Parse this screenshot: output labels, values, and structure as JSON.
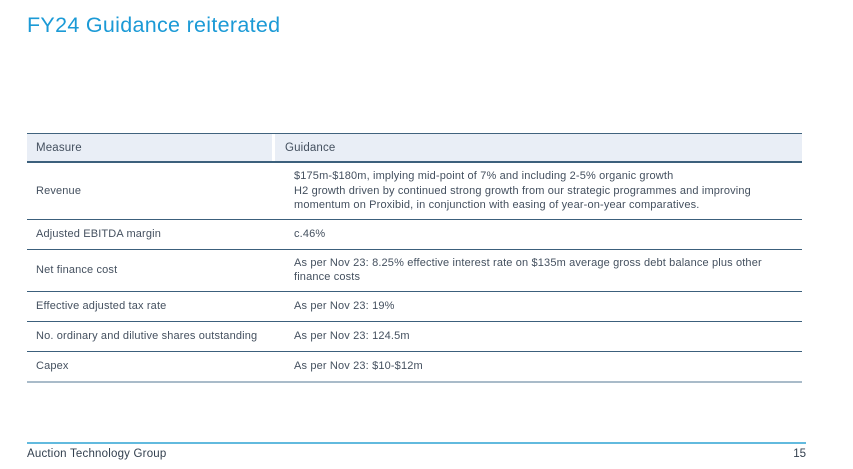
{
  "slide": {
    "title": "FY24 Guidance reiterated"
  },
  "table": {
    "columns": [
      "Measure",
      "Guidance"
    ],
    "rows": [
      {
        "measure": "Revenue",
        "guidance": [
          "$175m-$180m, implying mid-point of 7% and including 2-5% organic growth",
          "H2 growth driven by continued strong growth from our strategic programmes and improving momentum on Proxibid, in conjunction with easing of year-on-year comparatives."
        ]
      },
      {
        "measure": "Adjusted EBITDA margin",
        "guidance": [
          "c.46%"
        ]
      },
      {
        "measure": "Net finance cost",
        "guidance": [
          "As per Nov 23: 8.25% effective interest rate on $135m average gross debt balance plus other finance costs"
        ]
      },
      {
        "measure": "Effective adjusted tax rate",
        "guidance": [
          "As per Nov 23: 19%"
        ]
      },
      {
        "measure": "No. ordinary and dilutive shares outstanding",
        "guidance": [
          "As per Nov 23: 124.5m"
        ]
      },
      {
        "measure": "Capex",
        "guidance": [
          "As per Nov 23: $10-$12m"
        ]
      }
    ]
  },
  "footer": {
    "company": "Auction Technology Group",
    "page_number": "15"
  },
  "colors": {
    "title_blue": "#1b9ad6",
    "table_border_dark": "#3c607c",
    "table_header_bg": "#e9eef6",
    "table_text": "#44505f",
    "table_bottom_border": "#a9bbc9",
    "footer_line_blue": "#62bade"
  }
}
